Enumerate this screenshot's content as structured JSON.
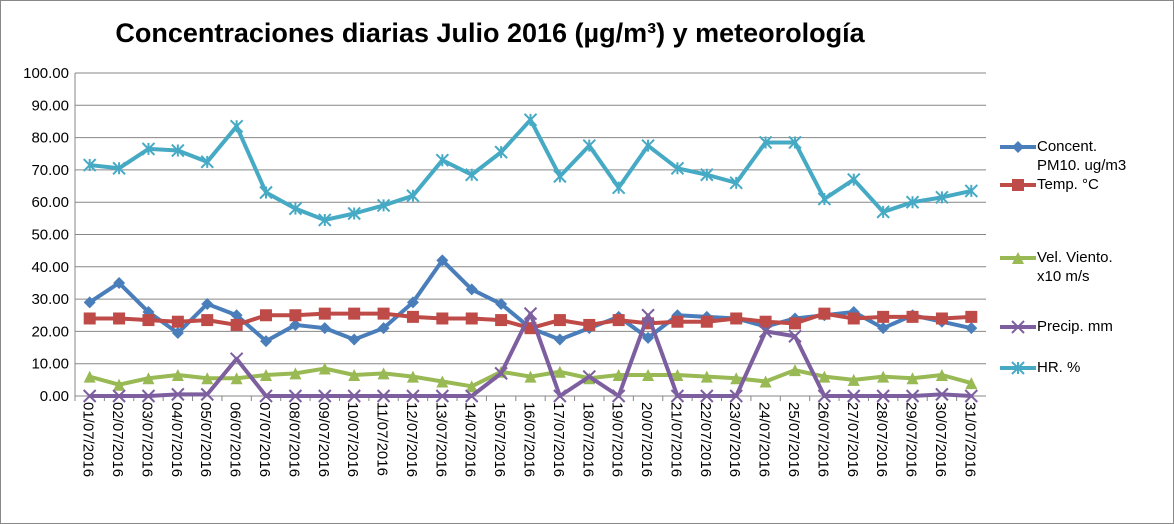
{
  "chart_data": {
    "type": "line",
    "title": "Concentraciones diarias Julio 2016 (µg/m³) y meteorología",
    "categories": [
      "01/07/2016",
      "02/07/2016",
      "03/07/2016",
      "04/07/2016",
      "05/07/2016",
      "06/07/2016",
      "07/07/2016",
      "08/07/2016",
      "09/07/2016",
      "10/07/2016",
      "11/07/2016",
      "12/07/2016",
      "13/07/2016",
      "14/07/2016",
      "15/07/2016",
      "16/07/2016",
      "17/07/2016",
      "18/07/2016",
      "19/07/2016",
      "20/07/2016",
      "21/07/2016",
      "22/07/2016",
      "23/07/2016",
      "24/07/2016",
      "25/07/2016",
      "26/07/2016",
      "27/07/2016",
      "28/07/2016",
      "29/07/2016",
      "30/07/2016",
      "31/07/2016"
    ],
    "ylim": [
      0,
      100
    ],
    "yticks": [
      {
        "value": 0,
        "label": "0.00"
      },
      {
        "value": 10,
        "label": "10.00"
      },
      {
        "value": 20,
        "label": "20.00"
      },
      {
        "value": 30,
        "label": "30.00"
      },
      {
        "value": 40,
        "label": "40.00"
      },
      {
        "value": 50,
        "label": "50.00"
      },
      {
        "value": 60,
        "label": "60.00"
      },
      {
        "value": 70,
        "label": "70.00"
      },
      {
        "value": 80,
        "label": "80.00"
      },
      {
        "value": 90,
        "label": "90.00"
      },
      {
        "value": 100,
        "label": "100.00"
      }
    ],
    "grid": true,
    "legend": "right",
    "series": [
      {
        "name": "Concent. PM10. ug/m3",
        "color": "#4a7ebb",
        "marker": "diamond",
        "values": [
          29,
          35,
          26,
          19.5,
          28.5,
          25,
          17,
          22,
          21,
          17.5,
          21,
          29,
          42,
          33,
          28.5,
          21,
          17.5,
          21,
          24.5,
          18,
          25,
          24.5,
          24,
          21.5,
          24,
          25,
          26,
          21,
          25,
          23,
          21
        ]
      },
      {
        "name": "Temp. °C",
        "color": "#be4b48",
        "marker": "square",
        "values": [
          24,
          24,
          23.5,
          23,
          23.5,
          22,
          25,
          25,
          25.5,
          25.5,
          25.5,
          24.5,
          24,
          24,
          23.5,
          21,
          23.5,
          22,
          23.5,
          22.5,
          23,
          23,
          24,
          23,
          22.5,
          25.5,
          24,
          24.5,
          24.5,
          24,
          24.5
        ]
      },
      {
        "name": "Vel. Viento. x10 m/s",
        "color": "#98b954",
        "marker": "triangle",
        "values": [
          6,
          3.5,
          5.5,
          6.5,
          5.5,
          5.5,
          6.5,
          7,
          8.5,
          6.5,
          7,
          6,
          4.5,
          3,
          7.5,
          6,
          7.5,
          5.5,
          6.5,
          6.5,
          6.5,
          6,
          5.5,
          4.5,
          8,
          6,
          5,
          6,
          5.5,
          6.5,
          4
        ]
      },
      {
        "name": "Precip. mm",
        "color": "#7d5fa0",
        "marker": "x",
        "values": [
          0,
          0,
          0,
          0.5,
          0.5,
          11.5,
          0,
          0,
          0,
          0,
          0,
          0,
          0,
          0,
          7,
          25.5,
          0,
          6,
          0,
          25,
          0,
          0,
          0,
          20,
          18.5,
          0,
          0,
          0,
          0,
          0.5,
          0
        ]
      },
      {
        "name": "HR. %",
        "color": "#46aac5",
        "marker": "star",
        "values": [
          71.5,
          70.5,
          76.5,
          76,
          72.5,
          83.5,
          63,
          58,
          54.5,
          56.5,
          59,
          62,
          73,
          68.5,
          75.5,
          85.5,
          68,
          77.5,
          64.5,
          77.5,
          70.5,
          68.5,
          66,
          78.5,
          78.5,
          61,
          67,
          57,
          60,
          61.5,
          63.5
        ]
      }
    ]
  }
}
